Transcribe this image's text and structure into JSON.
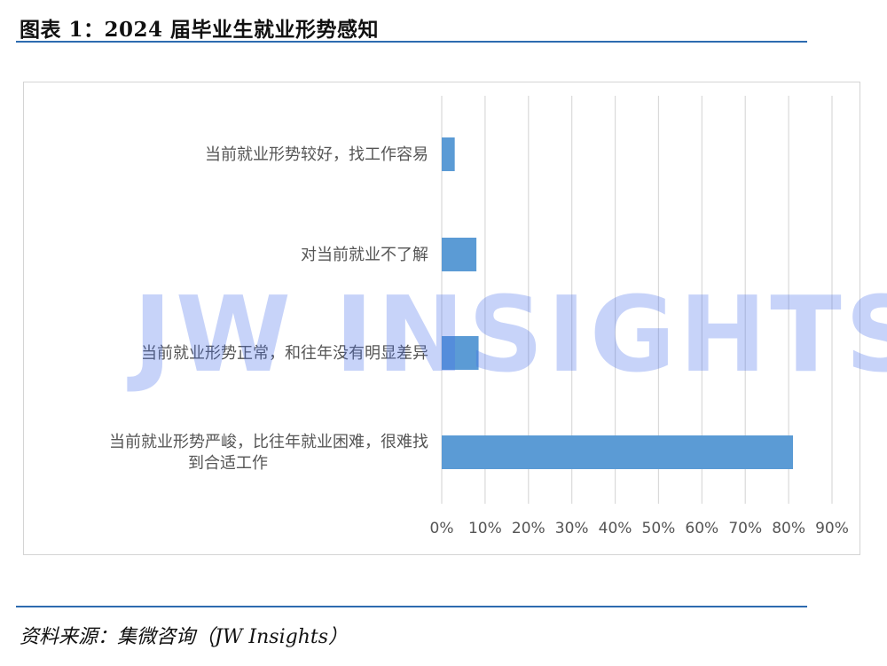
{
  "figure": {
    "title": "图表 1：2024 届毕业生就业形势感知",
    "source": "资料来源：集微咨询（JW Insights）",
    "watermark": "JW INSIGHTS"
  },
  "chart_data": {
    "type": "bar",
    "orientation": "horizontal",
    "categories": [
      [
        "当前就业形势较好，找工作容易"
      ],
      [
        "对当前就业不了解"
      ],
      [
        "当前就业形势正常，和往年没有明显差异"
      ],
      [
        "当前就业形势严峻，比往年就业困难，很难找",
        "到合适工作"
      ]
    ],
    "values": [
      3,
      8,
      8.5,
      81
    ],
    "xlim": [
      0,
      90
    ],
    "x_ticks": [
      "0%",
      "10%",
      "20%",
      "30%",
      "40%",
      "50%",
      "60%",
      "70%",
      "80%",
      "90%"
    ],
    "grid": true,
    "bar_color": "#5b9bd5",
    "grid_color": "#d9d9d9"
  }
}
